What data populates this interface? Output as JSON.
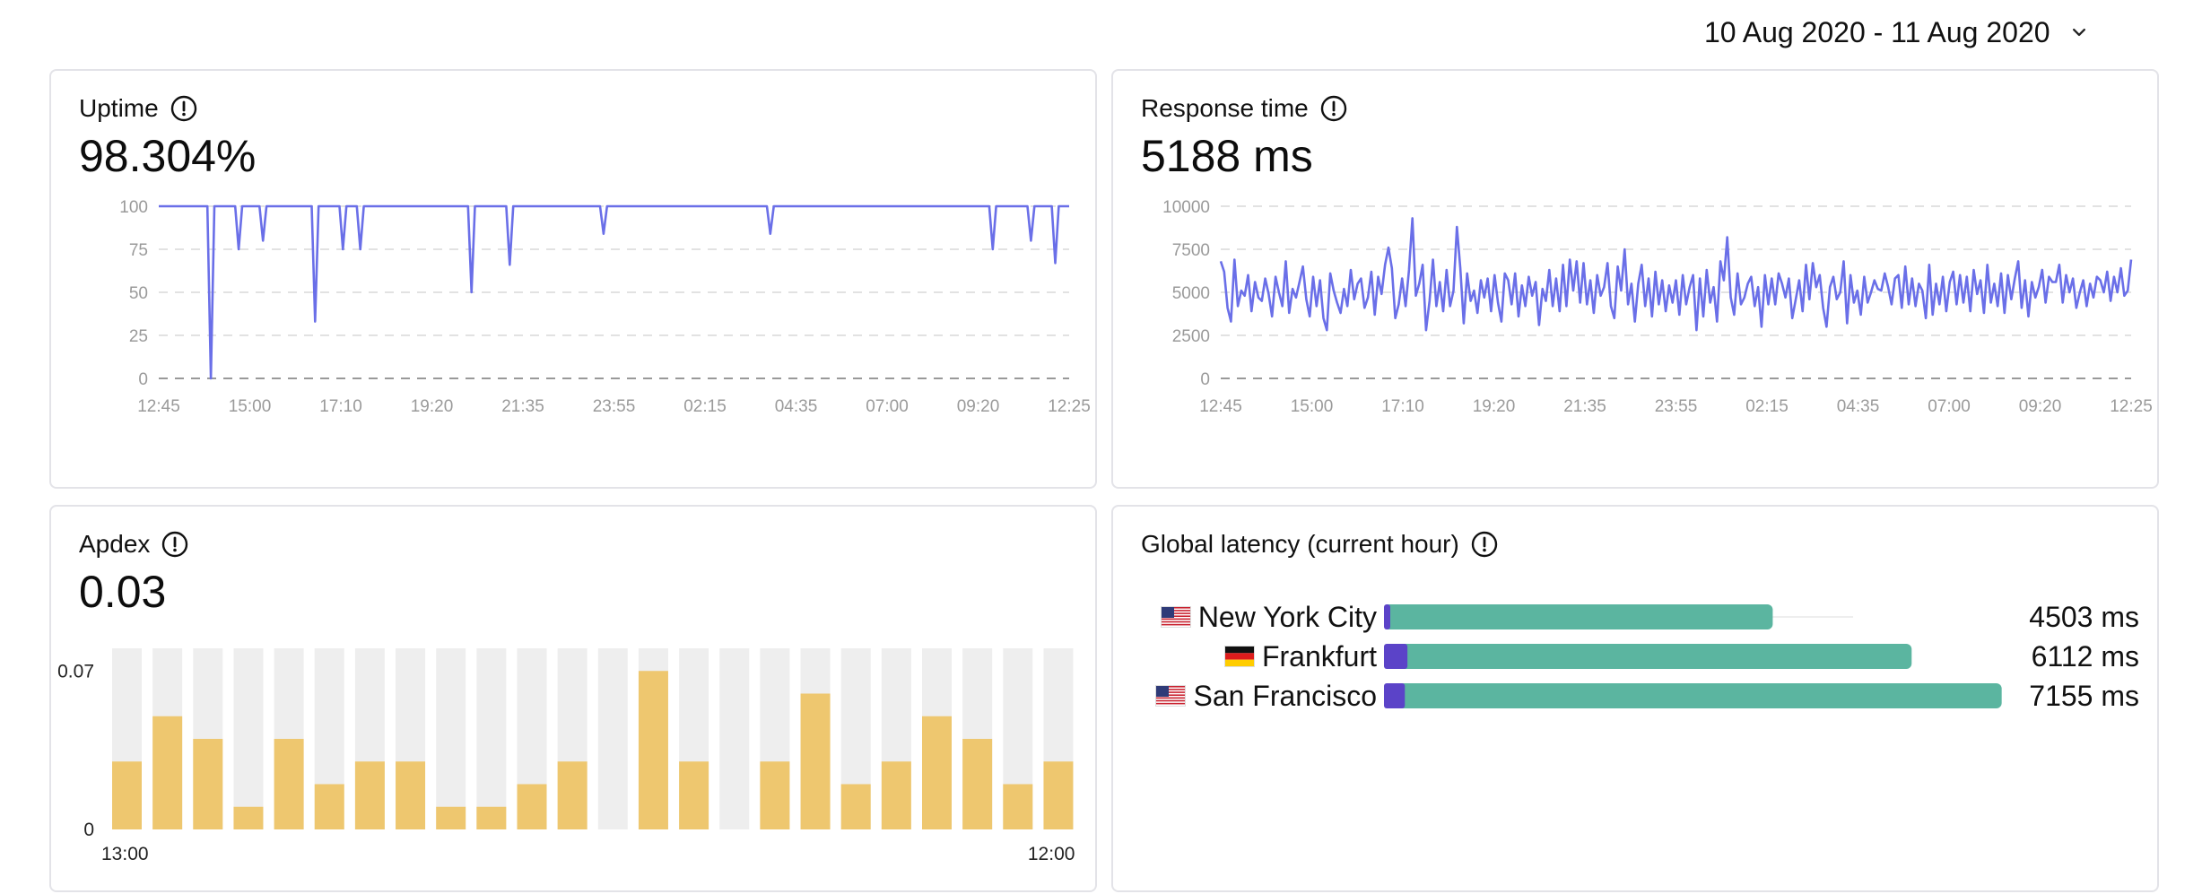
{
  "date_range": {
    "label": "10 Aug 2020 - 11 Aug 2020"
  },
  "uptime": {
    "title": "Uptime",
    "value": "98.304%",
    "y_ticks": [
      "100",
      "75",
      "50",
      "25",
      "0"
    ],
    "x_ticks": [
      "12:45",
      "15:00",
      "17:10",
      "19:20",
      "21:35",
      "23:55",
      "02:15",
      "04:35",
      "07:00",
      "09:20",
      "12:25"
    ]
  },
  "response_time": {
    "title": "Response time",
    "value": "5188 ms",
    "y_ticks": [
      "10000",
      "7500",
      "5000",
      "2500",
      "0"
    ],
    "x_ticks": [
      "12:45",
      "15:00",
      "17:10",
      "19:20",
      "21:35",
      "23:55",
      "02:15",
      "04:35",
      "07:00",
      "09:20",
      "12:25"
    ]
  },
  "apdex": {
    "title": "Apdex",
    "value": "0.03",
    "y_ticks": [
      "0.07",
      "0"
    ],
    "x_ticks": [
      "13:00",
      "12:00"
    ]
  },
  "global_latency": {
    "title": "Global latency (current hour)",
    "rows": [
      {
        "city": "New York City",
        "flag": "us-flag-icon",
        "value": "4503 ms",
        "ms": 4503,
        "dns_ms": 30
      },
      {
        "city": "Frankfurt",
        "flag": "de-flag-icon",
        "value": "6112 ms",
        "ms": 6112,
        "dns_ms": 230
      },
      {
        "city": "San Francisco",
        "flag": "us-flag-icon",
        "value": "7155 ms",
        "ms": 7155,
        "dns_ms": 200
      }
    ],
    "max_ms": 7200
  },
  "chart_data": [
    {
      "type": "line",
      "ylim": [
        0,
        100
      ],
      "series": [
        {
          "values": [
            100,
            100,
            100,
            100,
            100,
            100,
            100,
            100,
            100,
            100,
            100,
            100,
            100,
            100,
            100,
            0,
            100,
            100,
            100,
            100,
            100,
            100,
            100,
            75,
            100,
            100,
            100,
            100,
            100,
            100,
            80,
            100,
            100,
            100,
            100,
            100,
            100,
            100,
            100,
            100,
            100,
            100,
            100,
            100,
            100,
            33,
            100,
            100,
            100,
            100,
            100,
            100,
            100,
            75,
            100,
            100,
            100,
            100,
            75,
            100,
            100,
            100,
            100,
            100,
            100,
            100,
            100,
            100,
            100,
            100,
            100,
            100,
            100,
            100,
            100,
            100,
            100,
            100,
            100,
            100,
            100,
            100,
            100,
            100,
            100,
            100,
            100,
            100,
            100,
            100,
            50,
            100,
            100,
            100,
            100,
            100,
            100,
            100,
            100,
            100,
            100,
            66,
            100,
            100,
            100,
            100,
            100,
            100,
            100,
            100,
            100,
            100,
            100,
            100,
            100,
            100,
            100,
            100,
            100,
            100,
            100,
            100,
            100,
            100,
            100,
            100,
            100,
            100,
            84,
            100,
            100,
            100,
            100,
            100,
            100,
            100,
            100,
            100,
            100,
            100,
            100,
            100,
            100,
            100,
            100,
            100,
            100,
            100,
            100,
            100,
            100,
            100,
            100,
            100,
            100,
            100,
            100,
            100,
            100,
            100,
            100,
            100,
            100,
            100,
            100,
            100,
            100,
            100,
            100,
            100,
            100,
            100,
            100,
            100,
            100,
            100,
            84,
            100,
            100,
            100,
            100,
            100,
            100,
            100,
            100,
            100,
            100,
            100,
            100,
            100,
            100,
            100,
            100,
            100,
            100,
            100,
            100,
            100,
            100,
            100,
            100,
            100,
            100,
            100,
            100,
            100,
            100,
            100,
            100,
            100,
            100,
            100,
            100,
            100,
            100,
            100,
            100,
            100,
            100,
            100,
            100,
            100,
            100,
            100,
            100,
            100,
            100,
            100,
            100,
            100,
            100,
            100,
            100,
            100,
            100,
            100,
            100,
            100,
            100,
            100,
            75,
            100,
            100,
            100,
            100,
            100,
            100,
            100,
            100,
            100,
            100,
            80,
            100,
            100,
            100,
            100,
            100,
            100,
            67,
            100,
            100,
            100,
            100
          ]
        }
      ]
    },
    {
      "type": "line",
      "ylim": [
        0,
        10000
      ],
      "series": [
        {
          "values": [
            6800,
            6200,
            4100,
            3300,
            6900,
            4200,
            5100,
            4800,
            6000,
            3900,
            5600,
            4700,
            4500,
            5800,
            4900,
            3600,
            5900,
            5000,
            4200,
            6800,
            3800,
            5200,
            4700,
            5600,
            6500,
            4600,
            3600,
            5900,
            4200,
            5700,
            3500,
            2800,
            6100,
            5100,
            4400,
            3800,
            5200,
            4200,
            6300,
            4600,
            5500,
            5800,
            4100,
            4700,
            6200,
            3700,
            5900,
            4900,
            6600,
            7600,
            6400,
            3500,
            4300,
            5800,
            4200,
            6300,
            9300,
            4800,
            5500,
            6600,
            2800,
            4500,
            6900,
            4200,
            5600,
            3900,
            6300,
            4200,
            5100,
            8800,
            6400,
            3200,
            6100,
            4500,
            5100,
            3800,
            5700,
            4700,
            5800,
            3900,
            6000,
            4400,
            3300,
            6100,
            5700,
            4300,
            6100,
            3600,
            5400,
            4200,
            5900,
            4800,
            5600,
            3100,
            5200,
            4500,
            6300,
            4200,
            5800,
            3900,
            6600,
            4200,
            6900,
            5100,
            6800,
            4400,
            6700,
            4300,
            5700,
            3800,
            6000,
            4800,
            5300,
            6700,
            4200,
            3500,
            6500,
            5100,
            7500,
            4300,
            5500,
            3300,
            5500,
            6600,
            4200,
            5800,
            3600,
            6200,
            4300,
            5700,
            3900,
            5400,
            4400,
            5700,
            3700,
            6000,
            4300,
            5300,
            6000,
            2800,
            5800,
            3600,
            6300,
            4400,
            5300,
            3300,
            6800,
            5700,
            8200,
            4700,
            3700,
            6100,
            4300,
            4700,
            5500,
            5900,
            4200,
            5300,
            3000,
            6000,
            4300,
            5800,
            4300,
            6100,
            5500,
            4700,
            5800,
            3500,
            4600,
            5700,
            3900,
            6600,
            4600,
            6700,
            5300,
            6000,
            4100,
            3000,
            5300,
            5900,
            4600,
            5000,
            6800,
            3200,
            6000,
            4400,
            5100,
            3700,
            5900,
            4400,
            5000,
            5700,
            5200,
            5100,
            6100,
            5300,
            4300,
            5800,
            6000,
            4100,
            6500,
            4300,
            5800,
            4200,
            5500,
            5100,
            3500,
            6600,
            3700,
            5500,
            4300,
            5900,
            3900,
            5600,
            6200,
            4300,
            6000,
            4400,
            5900,
            3900,
            6300,
            4900,
            5700,
            3800,
            6600,
            4400,
            5500,
            4200,
            6100,
            3800,
            6000,
            4600,
            5800,
            6800,
            4100,
            5700,
            3600,
            5600,
            4700,
            5300,
            6300,
            4400,
            5900,
            5600,
            5600,
            6600,
            4400,
            6000,
            5000,
            5800,
            4100,
            5000,
            5700,
            4200,
            5500,
            4700,
            5900,
            5700,
            5000,
            6200,
            4500,
            5900,
            5000,
            6400,
            4800,
            5100,
            6900
          ]
        }
      ]
    },
    {
      "type": "bar",
      "categories_first_last": [
        "13:00",
        "12:00"
      ],
      "ylim": [
        0,
        0.08
      ],
      "values": [
        0.03,
        0.05,
        0.04,
        0.01,
        0.04,
        0.02,
        0.03,
        0.03,
        0.01,
        0.01,
        0.02,
        0.03,
        0.0,
        0.07,
        0.03,
        0.0,
        0.03,
        0.06,
        0.02,
        0.03,
        0.05,
        0.04,
        0.02,
        0.03
      ]
    },
    {
      "type": "bar",
      "orientation": "horizontal",
      "categories": [
        "New York City",
        "Frankfurt",
        "San Francisco"
      ],
      "values": [
        4503,
        6112,
        7155
      ]
    }
  ]
}
